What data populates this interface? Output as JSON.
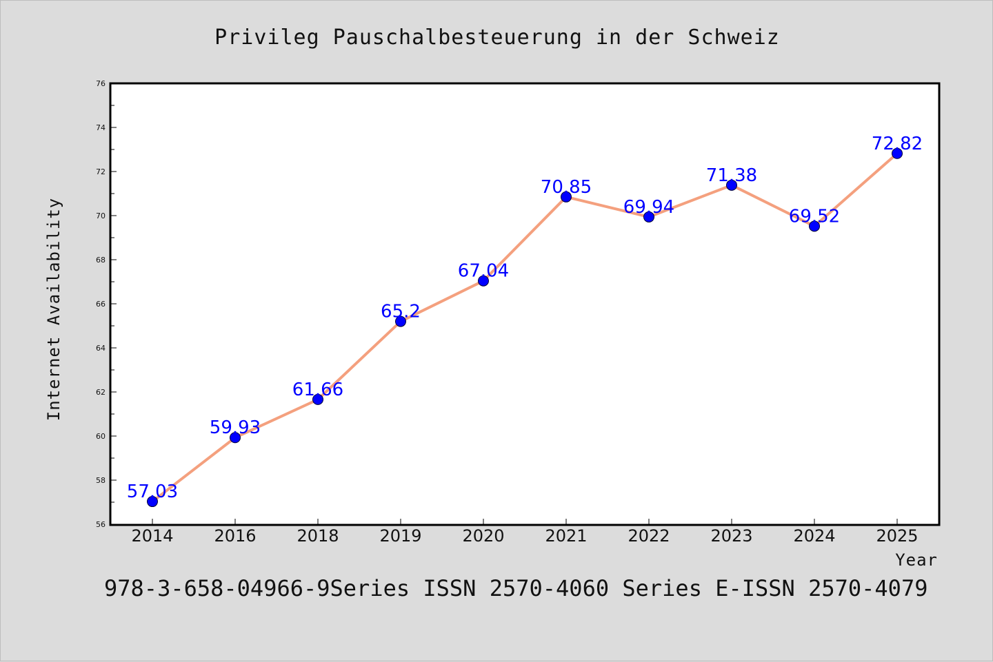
{
  "chart_data": {
    "type": "line",
    "title": "Privileg Pauschalbesteuerung in der Schweiz",
    "xlabel": "Year",
    "ylabel": "Internet Availability",
    "categories": [
      "2014",
      "2016",
      "2018",
      "2019",
      "2020",
      "2021",
      "2022",
      "2023",
      "2024",
      "2025"
    ],
    "values": [
      57.03,
      59.93,
      61.66,
      65.2,
      67.04,
      70.85,
      69.94,
      71.38,
      69.52,
      72.82
    ],
    "data_labels": [
      "57.03",
      "59.93",
      "61.66",
      "65.2",
      "67.04",
      "70.85",
      "69.94",
      "71.38",
      "69.52",
      "72.82"
    ],
    "ylim": [
      56,
      76
    ],
    "yticks": [
      "56",
      "58",
      "60",
      "62",
      "64",
      "66",
      "68",
      "70",
      "72",
      "74",
      "76"
    ],
    "grid": false,
    "colors": {
      "line": "#f4a07e",
      "marker": "#0000ff",
      "label": "#0000ff",
      "background": "#dcdcdc",
      "plot_bg": "#ffffff"
    }
  },
  "footer": "978-3-658-04966-9Series ISSN 2570-4060 Series E-ISSN 2570-4079"
}
